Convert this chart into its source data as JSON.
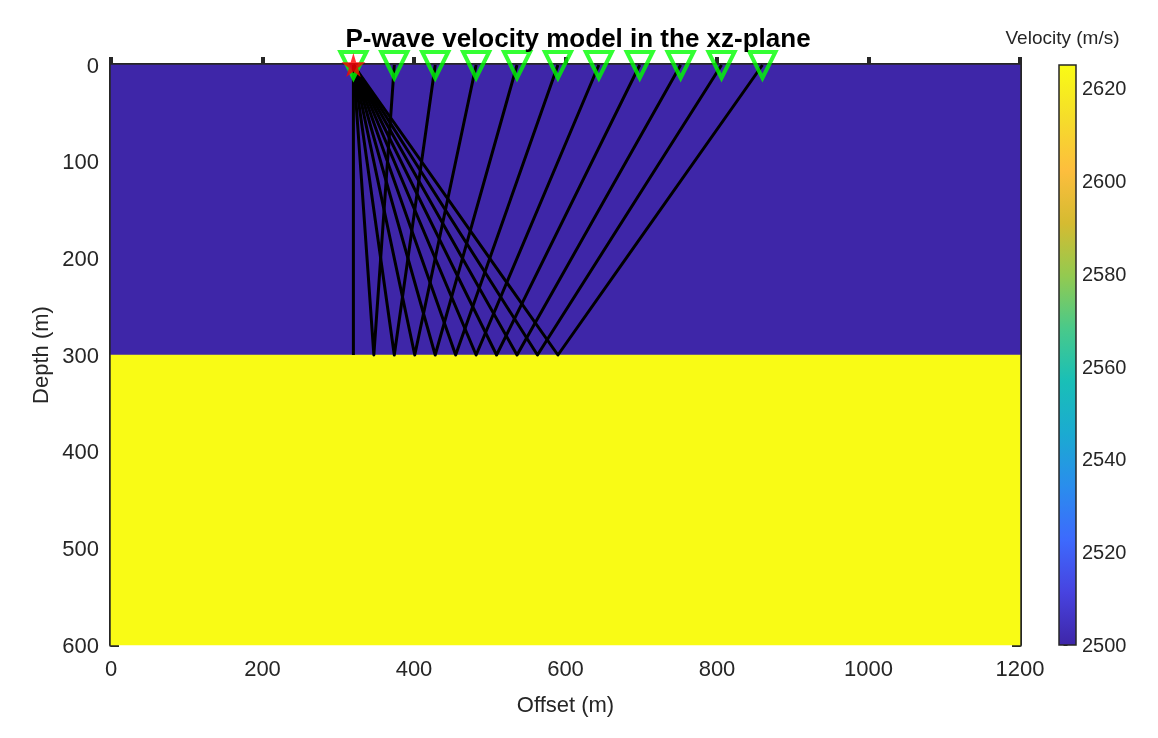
{
  "chart_data": {
    "type": "heatmap",
    "title": "P-wave velocity model in the xz-plane",
    "xlabel": "Offset (m)",
    "ylabel": "Depth (m)",
    "clabel": "Velocity (m/s)",
    "cells": [
      [
        2500
      ],
      [
        2625
      ]
    ],
    "clim": [
      2500,
      2625
    ],
    "cticks": [
      2500,
      2520,
      2540,
      2560,
      2580,
      2600,
      2620
    ],
    "xlim": [
      0,
      1200
    ],
    "xticks": [
      0,
      200,
      400,
      600,
      800,
      1000,
      1200
    ],
    "ylim": [
      600,
      0
    ],
    "yticks": [
      0,
      100,
      200,
      300,
      400,
      500,
      600
    ],
    "series": [
      {
        "type": "line",
        "color": "#000000",
        "x": [
          320,
          320
        ],
        "values": [
          0,
          300
        ]
      },
      {
        "type": "line",
        "color": "#000000",
        "x": [
          320,
          347,
          374
        ],
        "values": [
          0,
          300,
          0
        ]
      },
      {
        "type": "line",
        "color": "#000000",
        "x": [
          320,
          374,
          428
        ],
        "values": [
          0,
          300,
          0
        ]
      },
      {
        "type": "line",
        "color": "#000000",
        "x": [
          320,
          401,
          482
        ],
        "values": [
          0,
          300,
          0
        ]
      },
      {
        "type": "line",
        "color": "#000000",
        "x": [
          320,
          428,
          536
        ],
        "values": [
          0,
          300,
          0
        ]
      },
      {
        "type": "line",
        "color": "#000000",
        "x": [
          320,
          455,
          590
        ],
        "values": [
          0,
          300,
          0
        ]
      },
      {
        "type": "line",
        "color": "#000000",
        "x": [
          320,
          482,
          644
        ],
        "values": [
          0,
          300,
          0
        ]
      },
      {
        "type": "line",
        "color": "#000000",
        "x": [
          320,
          509,
          698
        ],
        "values": [
          0,
          300,
          0
        ]
      },
      {
        "type": "line",
        "color": "#000000",
        "x": [
          320,
          536,
          752
        ],
        "values": [
          0,
          300,
          0
        ]
      },
      {
        "type": "line",
        "color": "#000000",
        "x": [
          320,
          563,
          806
        ],
        "values": [
          0,
          300,
          0
        ]
      },
      {
        "type": "line",
        "color": "#000000",
        "x": [
          320,
          590,
          860
        ],
        "values": [
          0,
          300,
          0
        ]
      },
      {
        "type": "scatter",
        "color": "#00ff00",
        "marker": "triangle",
        "x": [
          320,
          374,
          428,
          482,
          536,
          590,
          644,
          698,
          752,
          806,
          860
        ],
        "values": [
          0,
          0,
          0,
          0,
          0,
          0,
          0,
          0,
          0,
          0,
          0
        ]
      },
      {
        "type": "scatter",
        "color": "#ff0000",
        "marker": "star",
        "x": [
          320
        ],
        "values": [
          0
        ]
      }
    ]
  }
}
